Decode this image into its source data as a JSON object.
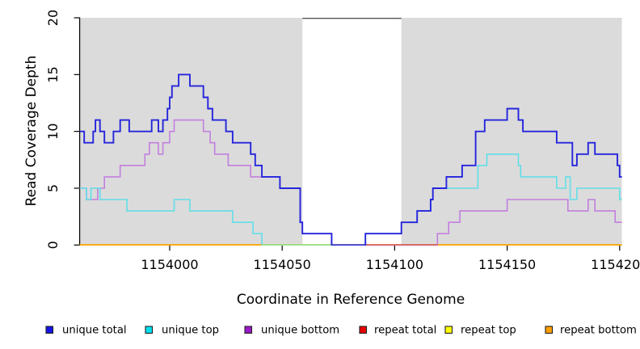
{
  "chart_data": {
    "type": "line",
    "subtype": "step-coverage",
    "title": "",
    "xlabel": "Coordinate in Reference Genome",
    "ylabel": "Read Coverage Depth",
    "xlim": [
      1153960,
      1154201
    ],
    "ylim": [
      0,
      20
    ],
    "x_ticks": [
      1154000,
      1154050,
      1154100,
      1154150,
      1154200
    ],
    "y_ticks": [
      0,
      5,
      10,
      15,
      20
    ],
    "grid": false,
    "legend_position": "bottom",
    "shaded_regions": [
      {
        "from": 1153960,
        "to": 1154059,
        "color": "#DBDBDB"
      },
      {
        "from": 1154103,
        "to": 1154201,
        "color": "#DBDBDB"
      }
    ],
    "gap_region": {
      "from": 1154059,
      "to": 1154103
    },
    "series": [
      {
        "name": "unique total",
        "color": "#2525DC",
        "legend_color": "#1414E6",
        "points": [
          [
            1153960,
            10
          ],
          [
            1153962,
            9
          ],
          [
            1153966,
            10
          ],
          [
            1153967,
            11
          ],
          [
            1153969,
            10
          ],
          [
            1153971,
            9
          ],
          [
            1153975,
            10
          ],
          [
            1153978,
            11
          ],
          [
            1153982,
            10
          ],
          [
            1153992,
            11
          ],
          [
            1153995,
            10
          ],
          [
            1153997,
            11
          ],
          [
            1153999,
            12
          ],
          [
            1154000,
            13
          ],
          [
            1154001,
            14
          ],
          [
            1154004,
            15
          ],
          [
            1154009,
            14
          ],
          [
            1154015,
            13
          ],
          [
            1154017,
            12
          ],
          [
            1154019,
            11
          ],
          [
            1154025,
            10
          ],
          [
            1154028,
            9
          ],
          [
            1154036,
            8
          ],
          [
            1154038,
            7
          ],
          [
            1154041,
            6
          ],
          [
            1154049,
            5
          ],
          [
            1154058,
            2
          ],
          [
            1154059,
            1
          ],
          [
            1154072,
            0
          ],
          [
            1154087,
            1
          ],
          [
            1154103,
            2
          ],
          [
            1154110,
            3
          ],
          [
            1154116,
            4
          ],
          [
            1154117,
            5
          ],
          [
            1154123,
            6
          ],
          [
            1154130,
            7
          ],
          [
            1154136,
            10
          ],
          [
            1154140,
            11
          ],
          [
            1154150,
            12
          ],
          [
            1154155,
            11
          ],
          [
            1154157,
            10
          ],
          [
            1154172,
            9
          ],
          [
            1154179,
            7
          ],
          [
            1154181,
            8
          ],
          [
            1154186,
            9
          ],
          [
            1154189,
            8
          ],
          [
            1154199,
            7
          ],
          [
            1154200,
            6
          ],
          [
            1154201,
            6
          ]
        ]
      },
      {
        "name": "unique top",
        "color": "#62DEE8",
        "legend_color": "#00E0EE",
        "points": [
          [
            1153960,
            5
          ],
          [
            1153963,
            4
          ],
          [
            1153965,
            5
          ],
          [
            1153969,
            4
          ],
          [
            1153981,
            3
          ],
          [
            1154002,
            4
          ],
          [
            1154009,
            3
          ],
          [
            1154028,
            2
          ],
          [
            1154037,
            1
          ],
          [
            1154041,
            0
          ],
          [
            1154087,
            1
          ],
          [
            1154103,
            2
          ],
          [
            1154110,
            3
          ],
          [
            1154116,
            4
          ],
          [
            1154117,
            5
          ],
          [
            1154137,
            7
          ],
          [
            1154141,
            8
          ],
          [
            1154155,
            7
          ],
          [
            1154156,
            6
          ],
          [
            1154172,
            5
          ],
          [
            1154176,
            6
          ],
          [
            1154178,
            4
          ],
          [
            1154181,
            5
          ],
          [
            1154200,
            4
          ],
          [
            1154201,
            4
          ]
        ]
      },
      {
        "name": "unique bottom",
        "color": "#C27FDE",
        "legend_color": "#9918C8",
        "points": [
          [
            1153960,
            5
          ],
          [
            1153963,
            4
          ],
          [
            1153968,
            5
          ],
          [
            1153971,
            6
          ],
          [
            1153978,
            7
          ],
          [
            1153989,
            8
          ],
          [
            1153991,
            9
          ],
          [
            1153995,
            8
          ],
          [
            1153997,
            9
          ],
          [
            1154000,
            10
          ],
          [
            1154002,
            11
          ],
          [
            1154015,
            10
          ],
          [
            1154018,
            9
          ],
          [
            1154020,
            8
          ],
          [
            1154026,
            7
          ],
          [
            1154036,
            6
          ],
          [
            1154049,
            5
          ],
          [
            1154058,
            2
          ],
          [
            1154059,
            1
          ],
          [
            1154072,
            0
          ],
          [
            1154119,
            1
          ],
          [
            1154124,
            2
          ],
          [
            1154129,
            3
          ],
          [
            1154150,
            4
          ],
          [
            1154177,
            3
          ],
          [
            1154186,
            4
          ],
          [
            1154189,
            3
          ],
          [
            1154198,
            2
          ],
          [
            1154201,
            2
          ]
        ]
      },
      {
        "name": "repeat total",
        "color": "#E80000",
        "legend_color": "#E80000",
        "points": [
          [
            1153960,
            0
          ],
          [
            1154201,
            0
          ]
        ]
      },
      {
        "name": "repeat top",
        "color": "#FFFF00",
        "legend_color": "#FFFF00",
        "points": [
          [
            1153960,
            0
          ],
          [
            1154201,
            0
          ]
        ]
      },
      {
        "name": "repeat bottom",
        "color": "#FFA500",
        "legend_color": "#FFA000",
        "points": [
          [
            1153960,
            0
          ],
          [
            1154201,
            0
          ]
        ]
      }
    ],
    "baseline_overlap_segments": [
      {
        "from": 1154041,
        "to": 1154072,
        "color": "#90E890"
      },
      {
        "from": 1154087,
        "to": 1154119,
        "color": "#D25060"
      }
    ],
    "legend": [
      {
        "label": "unique total",
        "color": "#1414E6"
      },
      {
        "label": "unique top",
        "color": "#00E0EE"
      },
      {
        "label": "unique bottom",
        "color": "#9918C8"
      },
      {
        "label": "repeat total",
        "color": "#E80000"
      },
      {
        "label": "repeat top",
        "color": "#FFFF00"
      },
      {
        "label": "repeat bottom",
        "color": "#FFA000"
      }
    ]
  }
}
